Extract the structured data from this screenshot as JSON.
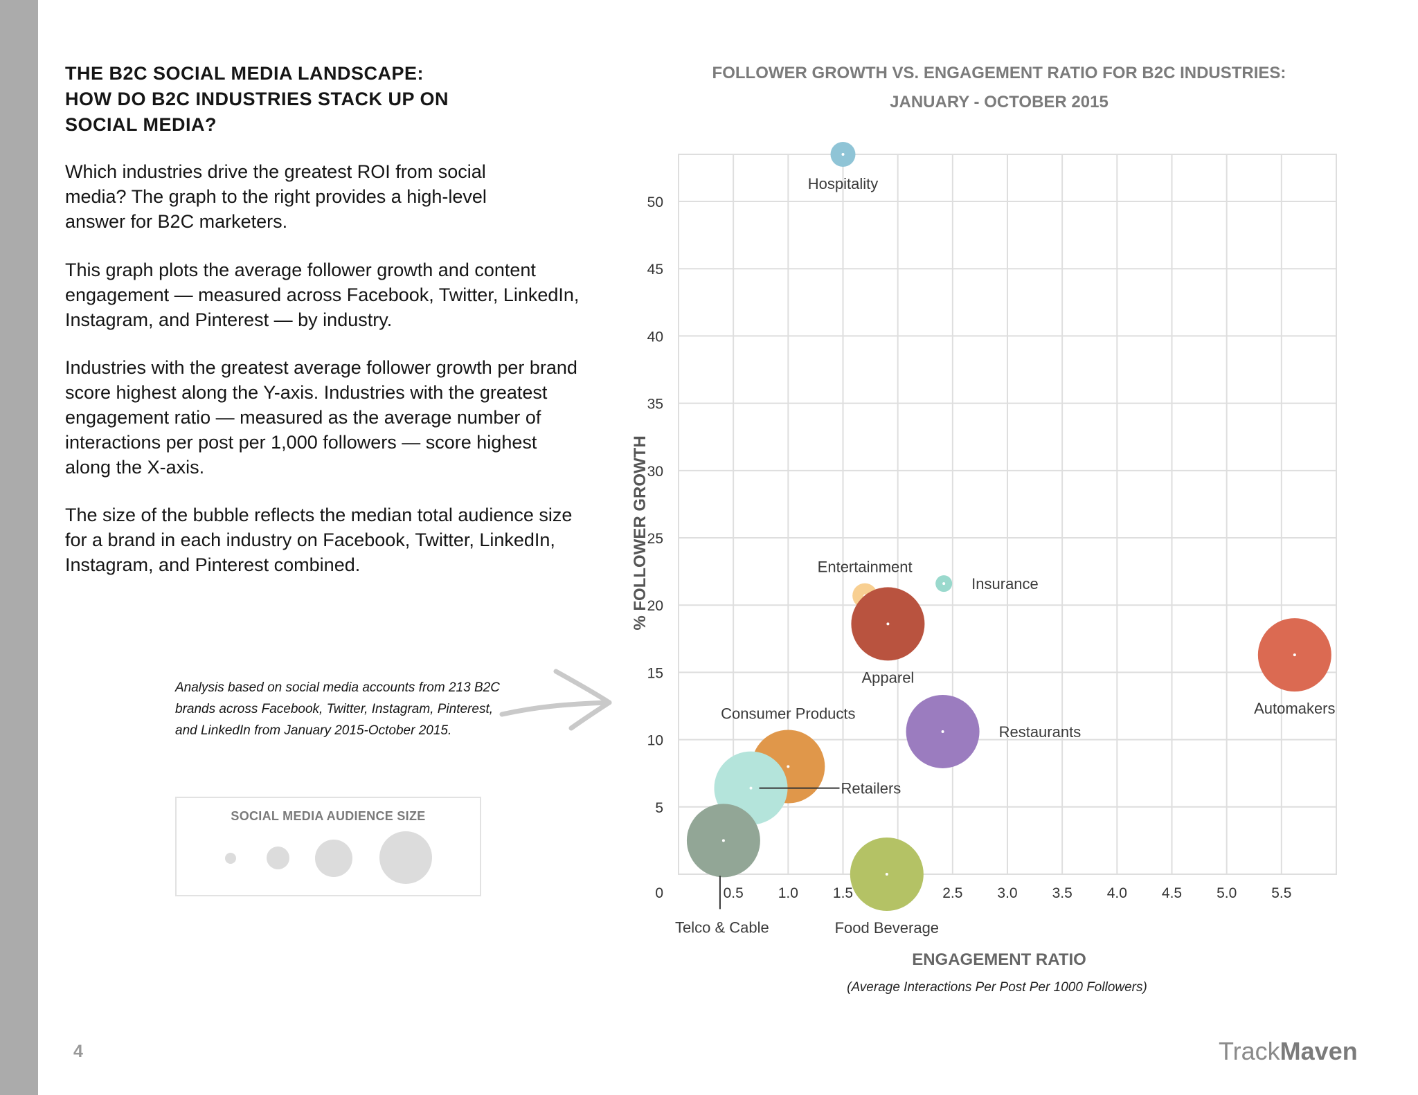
{
  "document": {
    "heading_lines": [
      "THE B2C SOCIAL MEDIA LANDSCAPE:",
      "HOW DO B2C INDUSTRIES STACK UP ON",
      "SOCIAL MEDIA?"
    ],
    "paragraphs": [
      "Which industries drive the greatest ROI from social media? The graph to the right provides a high-level answer for B2C marketers.",
      "This graph plots the average follower growth and content engagement — measured across Facebook, Twitter, LinkedIn, Instagram, and Pinterest — by industry.",
      "Industries with the greatest average follower growth per brand score highest along the Y-axis. Industries with the greatest engagement ratio — measured as the average number of interactions per post per 1,000 followers — score highest along the X-axis.",
      "The size of the bubble reflects the median total audience size for a brand in each industry on Facebook, Twitter, LinkedIn, Instagram, and Pinterest combined."
    ],
    "note": "Analysis based on social media accounts from 213 B2C brands across Facebook, Twitter, Instagram, Pinterest, and LinkedIn from January 2015-October 2015.",
    "legend_title": "SOCIAL MEDIA AUDIENCE SIZE",
    "page_number": "4",
    "brand_light": "Track",
    "brand_bold": "Maven"
  },
  "chart_data": {
    "type": "scatter",
    "title_lines": [
      "FOLLOWER GROWTH VS. ENGAGEMENT RATIO FOR B2C INDUSTRIES:",
      "JANUARY - OCTOBER 2015"
    ],
    "xlabel": "ENGAGEMENT RATIO",
    "xlabel_sub": "(Average Interactions Per Post Per 1000 Followers)",
    "ylabel": "% FOLLOWER GROWTH",
    "xlim": [
      0,
      6
    ],
    "ylim": [
      0,
      53.5
    ],
    "grid": true,
    "x_ticks": [
      0.5,
      1.0,
      1.5,
      2.0,
      2.5,
      3.0,
      3.5,
      4.0,
      4.5,
      5.0,
      5.5
    ],
    "x_tick_labels": [
      "0.5",
      "1.0",
      "1.5",
      "",
      "2.5",
      "3.0",
      "3.5",
      "4.0",
      "4.5",
      "5.0",
      "5.5"
    ],
    "y_ticks": [
      5,
      10,
      15,
      20,
      25,
      30,
      35,
      40,
      45,
      50
    ],
    "y_tick_labels": [
      "5",
      "10",
      "15",
      "20",
      "25",
      "30",
      "35",
      "40",
      "45",
      "50"
    ],
    "origin_label": "0",
    "points": [
      {
        "label": "Hospitality",
        "x": 1.5,
        "y": 53.5,
        "size": "small",
        "color": "#8fc4d6",
        "label_pos": "below"
      },
      {
        "label": "Entertainment",
        "x": 1.7,
        "y": 20.7,
        "size": "small",
        "color": "#f8cf91",
        "label_pos": "above"
      },
      {
        "label": "Insurance",
        "x": 2.42,
        "y": 21.6,
        "size": "tiny",
        "color": "#9ad9cd",
        "label_pos": "right"
      },
      {
        "label": "Apparel",
        "x": 1.91,
        "y": 18.6,
        "size": "large",
        "color": "#b9533f",
        "label_pos": "below"
      },
      {
        "label": "Automakers",
        "x": 5.62,
        "y": 16.3,
        "size": "large",
        "color": "#db6a52",
        "label_pos": "below"
      },
      {
        "label": "Restaurants",
        "x": 2.41,
        "y": 10.6,
        "size": "large",
        "color": "#9b7cbf",
        "label_pos": "right"
      },
      {
        "label": "Consumer Products",
        "x": 1.0,
        "y": 8.0,
        "size": "large",
        "color": "#e0974a",
        "label_pos": "above"
      },
      {
        "label": "Retailers",
        "x": 0.66,
        "y": 6.4,
        "size": "large",
        "color": "#b4e4db",
        "label_pos": "leader-right"
      },
      {
        "label": "Telco & Cable",
        "x": 0.41,
        "y": 2.5,
        "size": "large",
        "color": "#92a696",
        "label_pos": "leader-below"
      },
      {
        "label": "Food Beverage",
        "x": 1.9,
        "y": 0.0,
        "size": "large",
        "color": "#b4c265",
        "label_pos": "below"
      }
    ]
  }
}
